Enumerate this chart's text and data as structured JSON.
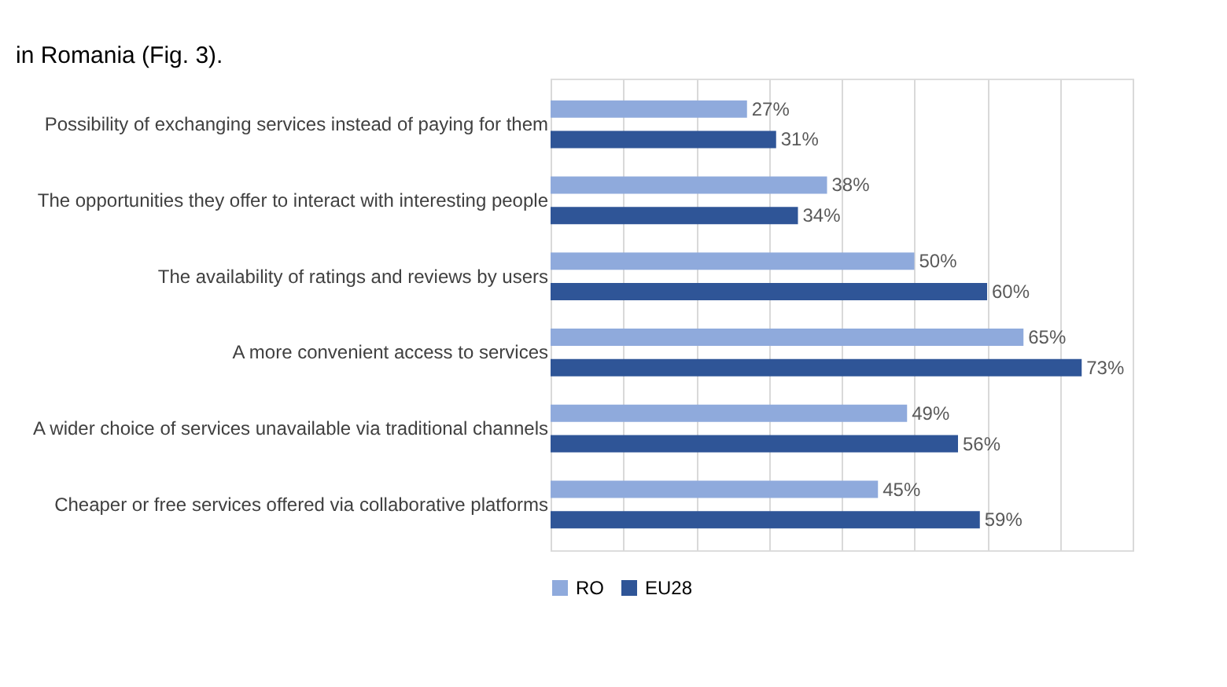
{
  "chart_data": {
    "type": "bar",
    "orientation": "horizontal",
    "categories": [
      "Possibility of exchanging services instead of paying for them",
      "The opportunities they offer to interact with interesting people",
      "The availability of ratings and reviews by users",
      "A more convenient access to services",
      "A wider choice of services unavailable via traditional channels",
      "Cheaper or free services offered via collaborative platforms"
    ],
    "series": [
      {
        "name": "RO",
        "color": "#8faadc",
        "values": [
          27,
          38,
          50,
          65,
          49,
          45
        ],
        "value_labels": [
          "27%",
          "38%",
          "50%",
          "65%",
          "49%",
          "45%"
        ]
      },
      {
        "name": "EU28",
        "color": "#2f5597",
        "values": [
          31,
          34,
          60,
          73,
          56,
          59
        ],
        "value_labels": [
          "31%",
          "34%",
          "60%",
          "73%",
          "56%",
          "59%"
        ]
      }
    ],
    "tick_labels": "y",
    "grid": "x",
    "legend": "bottom",
    "annotations": [
      "in Romania (Fig. 3)."
    ]
  }
}
